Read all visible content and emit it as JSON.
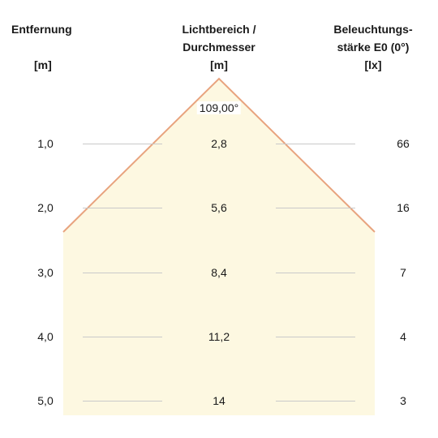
{
  "headers": {
    "distance": {
      "title": "Entfernung",
      "unit": "[m]"
    },
    "diameter": {
      "line1": "Lichtbereich /",
      "line2": "Durchmesser",
      "unit": "[m]"
    },
    "illuminance": {
      "line1": "Beleuchtungs-",
      "line2": "stärke E0 (0°)",
      "unit": "[lx]"
    }
  },
  "beam_angle": "109,00°",
  "rows": [
    {
      "distance": "1,0",
      "diameter": "2,8",
      "illuminance": "66"
    },
    {
      "distance": "2,0",
      "diameter": "5,6",
      "illuminance": "16"
    },
    {
      "distance": "3,0",
      "diameter": "8,4",
      "illuminance": "7"
    },
    {
      "distance": "4,0",
      "diameter": "11,2",
      "illuminance": "4"
    },
    {
      "distance": "5,0",
      "diameter": "14",
      "illuminance": "3"
    }
  ],
  "colors": {
    "beam_fill": "#fdf8e1",
    "beam_edge": "#e8a37e",
    "guide_line": "#c9c9c9",
    "text": "#1a1a1a"
  }
}
